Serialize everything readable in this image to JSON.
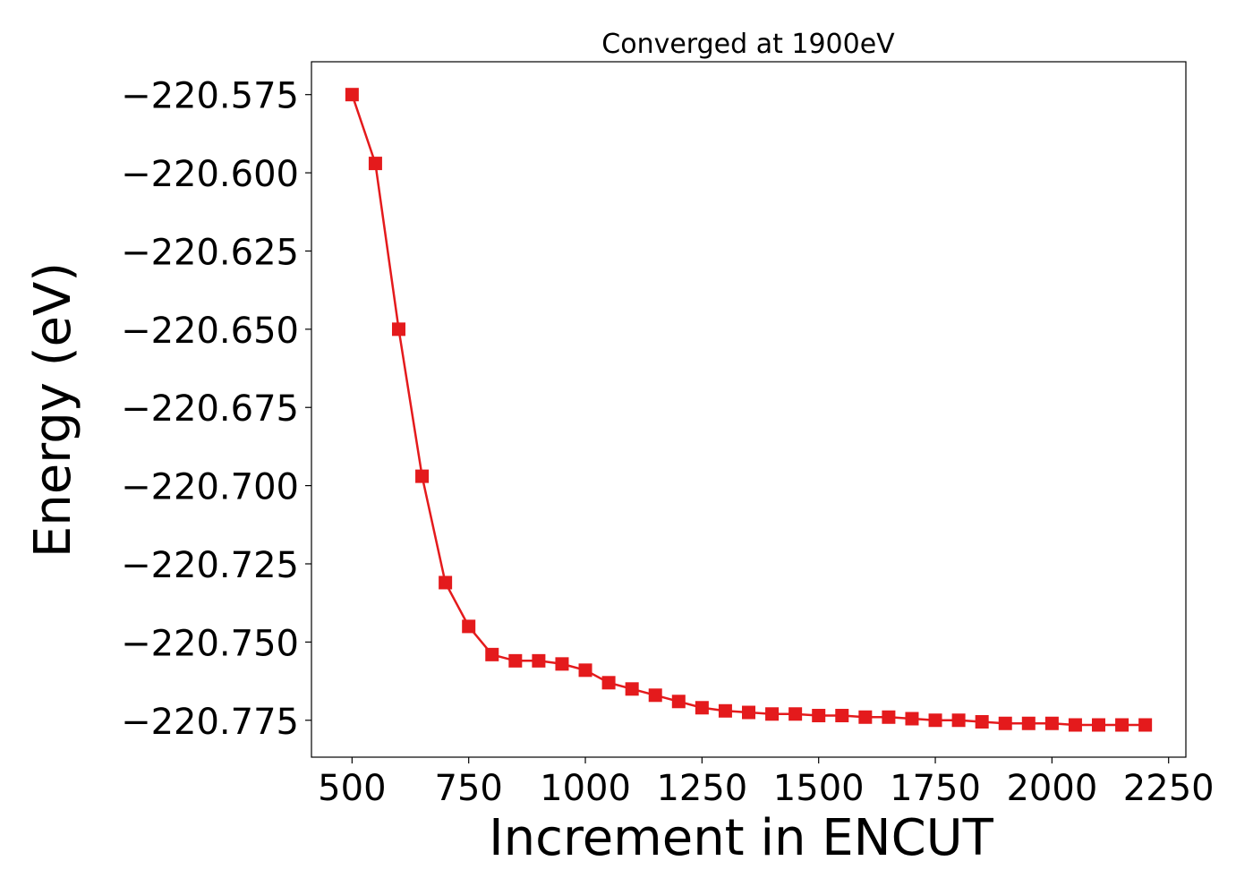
{
  "chart_data": {
    "type": "line",
    "title": "Converged at 1900eV",
    "xlabel": "Increment in ENCUT",
    "ylabel": "Energy (eV)",
    "xlim": [
      413,
      2287
    ],
    "ylim": [
      -220.7868,
      -220.5645
    ],
    "xticks": [
      500,
      750,
      1000,
      1250,
      1500,
      1750,
      2000,
      2250
    ],
    "xtick_labels": [
      "500",
      "750",
      "1000",
      "1250",
      "1500",
      "1750",
      "2000",
      "2250"
    ],
    "yticks": [
      -220.575,
      -220.6,
      -220.625,
      -220.65,
      -220.675,
      -220.7,
      -220.725,
      -220.75,
      -220.775
    ],
    "ytick_labels": [
      "−220.575",
      "−220.600",
      "−220.625",
      "−220.650",
      "−220.675",
      "−220.700",
      "−220.725",
      "−220.750",
      "−220.775"
    ],
    "grid": false,
    "series": [
      {
        "color": "#e41a1c",
        "marker": "square",
        "x": [
          500,
          550,
          600,
          650,
          700,
          750,
          800,
          850,
          900,
          950,
          1000,
          1050,
          1100,
          1150,
          1200,
          1250,
          1300,
          1350,
          1400,
          1450,
          1500,
          1550,
          1600,
          1650,
          1700,
          1750,
          1800,
          1850,
          1900,
          1950,
          2000,
          2050,
          2100,
          2150,
          2200
        ],
        "y": [
          -220.575,
          -220.597,
          -220.65,
          -220.697,
          -220.731,
          -220.745,
          -220.754,
          -220.756,
          -220.756,
          -220.757,
          -220.759,
          -220.763,
          -220.765,
          -220.767,
          -220.769,
          -220.771,
          -220.772,
          -220.7725,
          -220.773,
          -220.773,
          -220.7735,
          -220.7735,
          -220.774,
          -220.774,
          -220.7745,
          -220.775,
          -220.775,
          -220.7755,
          -220.776,
          -220.776,
          -220.776,
          -220.7765,
          -220.7765,
          -220.7765,
          -220.7765
        ]
      }
    ]
  }
}
